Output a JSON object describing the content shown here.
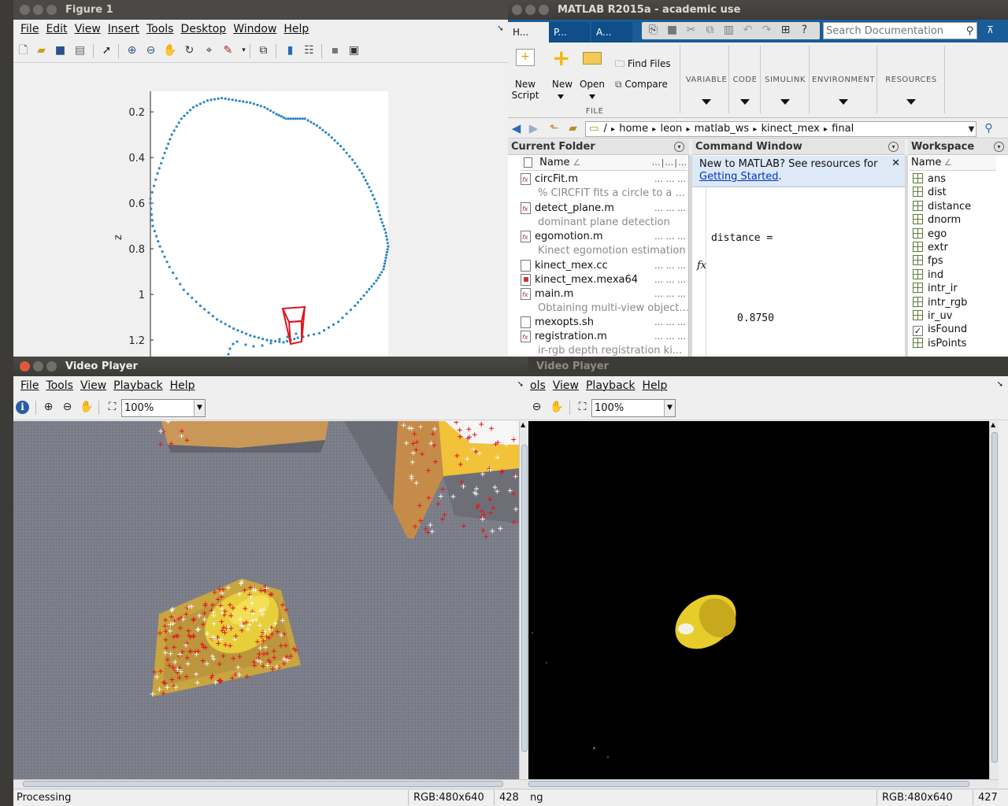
{
  "figure": {
    "title": "Figure 1",
    "menu": [
      "File",
      "Edit",
      "View",
      "Insert",
      "Tools",
      "Desktop",
      "Window",
      "Help"
    ],
    "ylabel": "z",
    "yticks": [
      "1.2",
      "1",
      "0.8",
      "0.6",
      "0.4",
      "0.2"
    ]
  },
  "chart_data": {
    "type": "scatter",
    "ylabel": "z",
    "ylim": [
      0.1,
      1.29
    ],
    "yticks": [
      0.2,
      0.4,
      0.6,
      0.8,
      1.0,
      1.2
    ],
    "trajectory_color": "#2e86c1",
    "camera_color": "#e0161c",
    "x": [
      0.0,
      0.03,
      0.06,
      0.09,
      0.13,
      0.18,
      0.24,
      0.3,
      0.36,
      0.42,
      0.48,
      0.53,
      0.57,
      0.61,
      0.65,
      0.7,
      0.75,
      0.8,
      0.85,
      0.89,
      0.92,
      0.95,
      0.97,
      0.99,
      1.0,
      0.99,
      0.98,
      0.95,
      0.91,
      0.86,
      0.79,
      0.71,
      0.62,
      0.56,
      0.49,
      0.42,
      0.35,
      0.28,
      0.21,
      0.14,
      0.08,
      0.04,
      0.01,
      0.0
    ],
    "y": [
      0.82,
      0.93,
      1.02,
      1.1,
      1.17,
      1.22,
      1.25,
      1.26,
      1.25,
      1.24,
      1.22,
      1.19,
      1.17,
      1.17,
      1.17,
      1.14,
      1.1,
      1.05,
      0.99,
      0.93,
      0.87,
      0.8,
      0.73,
      0.67,
      0.61,
      0.56,
      0.51,
      0.46,
      0.41,
      0.35,
      0.28,
      0.23,
      0.21,
      0.19,
      0.2,
      0.22,
      0.25,
      0.29,
      0.35,
      0.42,
      0.52,
      0.61,
      0.7,
      0.8
    ]
  },
  "matlab": {
    "title": "MATLAB R2015a - academic use",
    "tabs": [
      "H...",
      "P...",
      "A..."
    ],
    "search_placeholder": "Search Documentation",
    "ribbon": {
      "new_script": [
        "New",
        "Script"
      ],
      "new": "New",
      "open": "Open",
      "find_files": "Find Files",
      "compare": "Compare",
      "file_section": "FILE",
      "sections": [
        "VARIABLE",
        "CODE",
        "SIMULINK",
        "ENVIRONMENT",
        "RESOURCES"
      ]
    },
    "path": [
      "/",
      "home",
      "leon",
      "matlab_ws",
      "kinect_mex",
      "final"
    ],
    "current_folder": {
      "title": "Current Folder",
      "col_name": "Name",
      "files": [
        {
          "name": "circFit.m",
          "desc": "% CIRCFIT fits a circle to a ...",
          "kind": "m"
        },
        {
          "name": "detect_plane.m",
          "desc": "dominant plane detection",
          "kind": "m"
        },
        {
          "name": "egomotion.m",
          "desc": "Kinect egomotion estimation",
          "kind": "m"
        },
        {
          "name": "kinect_mex.cc",
          "desc": "",
          "kind": "file"
        },
        {
          "name": "kinect_mex.mexa64",
          "desc": "",
          "kind": "mex"
        },
        {
          "name": "main.m",
          "desc": "Obtaining multi-view object...",
          "kind": "m"
        },
        {
          "name": "mexopts.sh",
          "desc": "",
          "kind": "file"
        },
        {
          "name": "registration.m",
          "desc": "ir-rgb depth registration ki...",
          "kind": "m"
        }
      ]
    },
    "command_window": {
      "title": "Command Window",
      "notice": "New to MATLAB? See resources for",
      "link": "Getting Started",
      "link_tail": ".",
      "var_line": "distance =",
      "value_line": "0.8750",
      "prompt": "fx"
    },
    "workspace": {
      "title": "Workspace",
      "col_name": "Name",
      "vars": [
        "ans",
        "dist",
        "distance",
        "dnorm",
        "ego",
        "extr",
        "fps",
        "ind",
        "intr_ir",
        "intr_rgb",
        "ir_uv",
        "isFound",
        "isPoints"
      ]
    }
  },
  "player1": {
    "title": "Video Player",
    "menu": [
      "File",
      "Tools",
      "View",
      "Playback",
      "Help"
    ],
    "zoom": "100%",
    "status": "Processing",
    "resolution": "RGB:480x640",
    "frame": "428"
  },
  "player2": {
    "title": "Video Player",
    "menu": [
      "ols",
      "View",
      "Playback",
      "Help"
    ],
    "zoom": "100%",
    "status": "ng",
    "resolution": "RGB:480x640",
    "frame": "427"
  }
}
